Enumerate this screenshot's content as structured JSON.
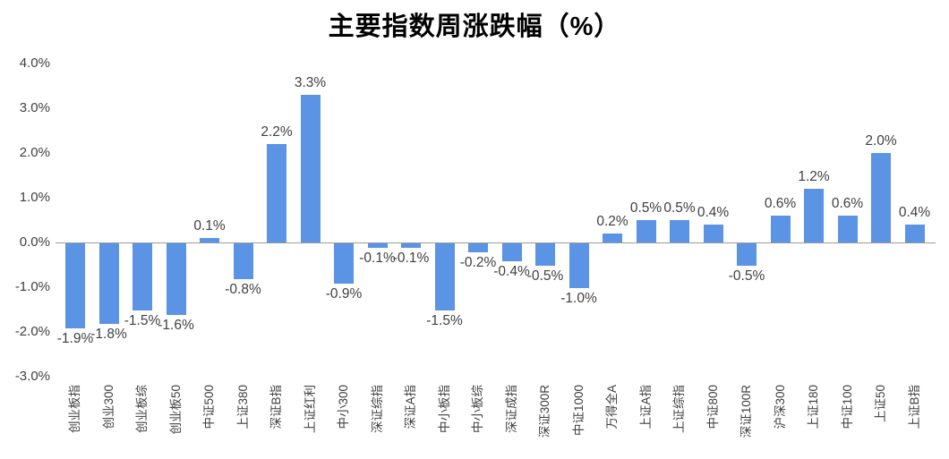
{
  "chart_data": {
    "type": "bar",
    "title": "主要指数周涨跌幅（%）",
    "xlabel": "",
    "ylabel": "",
    "categories": [
      "创业板指",
      "创业300",
      "创业板综",
      "创业板50",
      "中证500",
      "上证380",
      "深证B指",
      "上证红利",
      "中小300",
      "深证综指",
      "深证A指",
      "中小板指",
      "中小板综",
      "深证成指",
      "深证300R",
      "中证1000",
      "万得全A",
      "上证A指",
      "上证综指",
      "中证800",
      "深证100R",
      "沪深300",
      "上证180",
      "中证100",
      "上证50",
      "上证B指"
    ],
    "values": [
      -1.9,
      -1.8,
      -1.5,
      -1.6,
      0.1,
      -0.8,
      2.2,
      3.3,
      -0.9,
      -0.1,
      -0.1,
      -1.5,
      -0.2,
      -0.4,
      -0.5,
      -1.0,
      0.2,
      0.5,
      0.5,
      0.4,
      -0.5,
      0.6,
      1.2,
      0.6,
      2.0,
      0.4
    ],
    "value_labels": [
      "-1.9%",
      "-1.8%",
      "-1.5%",
      "-1.6%",
      "0.1%",
      "-0.8%",
      "2.2%",
      "3.3%",
      "-0.9%",
      "-0.1%",
      "-0.1%",
      "-1.5%",
      "-0.2%",
      "-0.4%",
      "-0.5%",
      "-1.0%",
      "0.2%",
      "0.5%",
      "0.5%",
      "0.4%",
      "-0.5%",
      "0.6%",
      "1.2%",
      "0.6%",
      "2.0%",
      "0.4%"
    ],
    "y_ticks": [
      "4.0%",
      "3.0%",
      "2.0%",
      "1.0%",
      "0.0%",
      "-1.0%",
      "-2.0%",
      "-3.0%"
    ],
    "y_tick_values": [
      4,
      3,
      2,
      1,
      0,
      -1,
      -2,
      -3
    ],
    "ylim": [
      -3.0,
      4.0
    ],
    "grid": false,
    "legend": false,
    "bar_color": "#5B93E5",
    "label_color": "#404040",
    "axis_line_color": "#9b9b9b"
  }
}
